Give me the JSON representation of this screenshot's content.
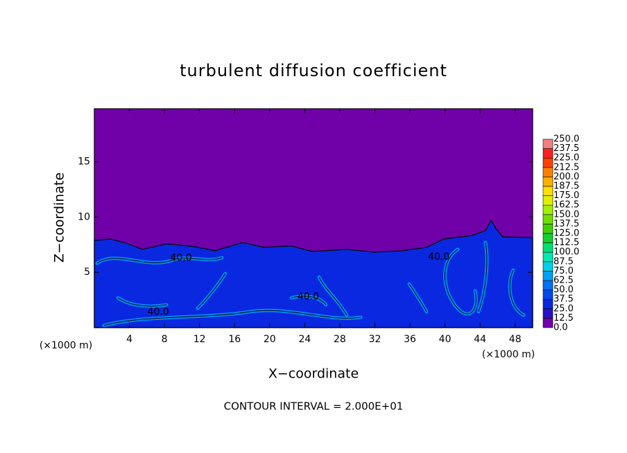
{
  "chart_data": {
    "type": "contour",
    "title": "turbulent diffusion coefficient",
    "xlabel": "X−coordinate",
    "ylabel": "Z−coordinate",
    "x_unit_label": "(×1000 m)",
    "footer": "CONTOUR INTERVAL = 2.000E+01",
    "xlim": [
      0,
      50
    ],
    "ylim": [
      0,
      19.8
    ],
    "xticks": [
      4,
      8,
      12,
      16,
      20,
      24,
      28,
      32,
      36,
      40,
      44,
      48
    ],
    "yticks": [
      5,
      10,
      15
    ],
    "background_color": "#7000a8",
    "contour_labels": [
      {
        "text": "40.0",
        "x": 9.9,
        "y": 6.3
      },
      {
        "text": "40.0",
        "x": 24.4,
        "y": 2.8
      },
      {
        "text": "40.0",
        "x": 7.3,
        "y": 1.4
      },
      {
        "text": "40.0",
        "x": 39.3,
        "y": 6.4
      }
    ],
    "colorbar": {
      "levels": [
        {
          "value": 0,
          "label": "0.0"
        },
        {
          "value": 12.5,
          "label": "12.5"
        },
        {
          "value": 25,
          "label": "25.0"
        },
        {
          "value": 37.5,
          "label": "37.5"
        },
        {
          "value": 50,
          "label": "50.0"
        },
        {
          "value": 62.5,
          "label": "62.5"
        },
        {
          "value": 75,
          "label": "75.0"
        },
        {
          "value": 87.5,
          "label": "87.5"
        },
        {
          "value": 100,
          "label": "100.0"
        },
        {
          "value": 112.5,
          "label": "112.5"
        },
        {
          "value": 125,
          "label": "125.0"
        },
        {
          "value": 137.5,
          "label": "137.5"
        },
        {
          "value": 150,
          "label": "150.0"
        },
        {
          "value": 162.5,
          "label": "162.5"
        },
        {
          "value": 175,
          "label": "175.0"
        },
        {
          "value": 187.5,
          "label": "187.5"
        },
        {
          "value": 200,
          "label": "200.0"
        },
        {
          "value": 212.5,
          "label": "212.5"
        },
        {
          "value": 225,
          "label": "225.0"
        },
        {
          "value": 237.5,
          "label": "237.5"
        },
        {
          "value": 250,
          "label": "250.0"
        }
      ],
      "colors": [
        "#7000a8",
        "#2a10c8",
        "#0a28e0",
        "#0048f0",
        "#0070f8",
        "#00a0f8",
        "#00d0e8",
        "#00e8b0",
        "#00e070",
        "#10d030",
        "#40d000",
        "#70e000",
        "#a0f000",
        "#e0f000",
        "#ffe000",
        "#ffb000",
        "#ff8000",
        "#ff4000",
        "#ff2020",
        "#f08080"
      ]
    }
  }
}
